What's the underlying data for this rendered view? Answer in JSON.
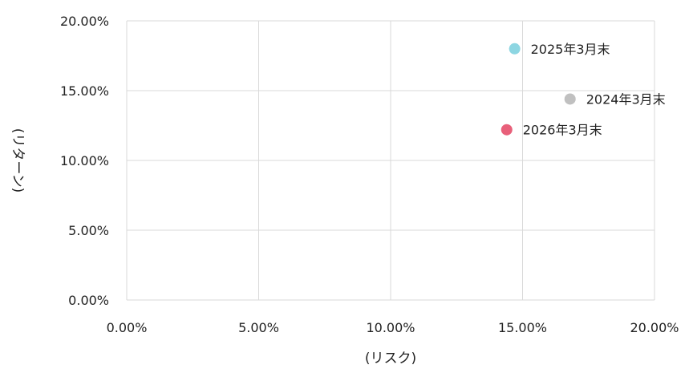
{
  "chart_data": {
    "type": "scatter",
    "title": "",
    "xlabel": "(リスク)",
    "ylabel": "(リターン)",
    "xlim": [
      0,
      20
    ],
    "ylim": [
      0,
      20
    ],
    "grid": true,
    "x_ticks": [
      "0.00%",
      "5.00%",
      "10.00%",
      "15.00%",
      "20.00%"
    ],
    "y_ticks": [
      "0.00%",
      "5.00%",
      "10.00%",
      "15.00%",
      "20.00%"
    ],
    "points": [
      {
        "label": "2025年3月末",
        "x": 14.7,
        "y": 18.0,
        "color": "#8dd6e2"
      },
      {
        "label": "2024年3月末",
        "x": 16.8,
        "y": 14.4,
        "color": "#c0c0c0"
      },
      {
        "label": "2026年3月末",
        "x": 14.4,
        "y": 12.2,
        "color": "#e8607a"
      }
    ]
  }
}
